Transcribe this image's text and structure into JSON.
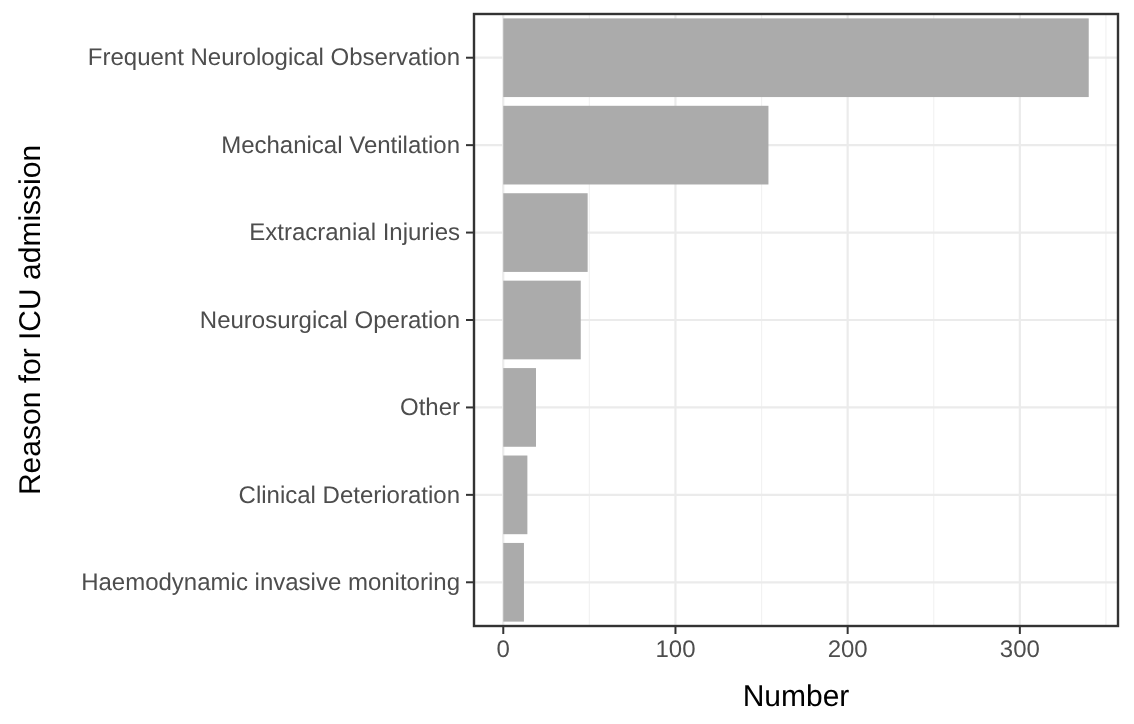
{
  "chart_data": {
    "type": "bar",
    "orientation": "horizontal",
    "xlabel": "Number",
    "ylabel": "Reason for ICU admission",
    "categories": [
      "Frequent Neurological Observation",
      "Mechanical Ventilation",
      "Extracranial Injuries",
      "Neurosurgical Operation",
      "Other",
      "Clinical Deterioration",
      "Haemodynamic invasive monitoring"
    ],
    "values": [
      340,
      154,
      49,
      45,
      19,
      14,
      12
    ],
    "color": "#ababab",
    "xlim": [
      -17,
      357
    ],
    "xticks": [
      0,
      100,
      200,
      300
    ],
    "grid": true
  }
}
